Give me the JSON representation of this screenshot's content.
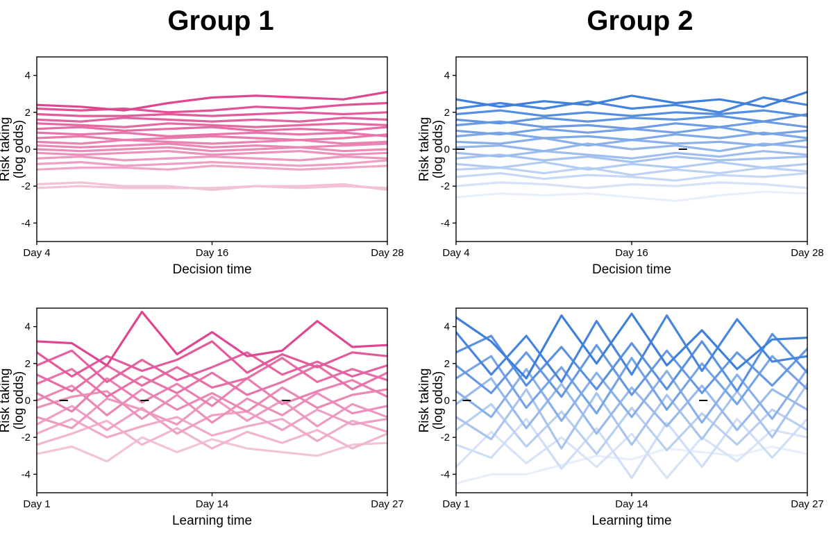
{
  "figure": {
    "group_titles": [
      "Group 1",
      "Group 2"
    ]
  },
  "chart_data": [
    {
      "id": "g1-decision",
      "type": "line",
      "group": "Group 1",
      "xlabel": "Decision time",
      "ylabel": [
        "Risk taking",
        "(log odds)"
      ],
      "x": [
        4,
        7,
        10,
        13,
        16,
        19,
        22,
        25,
        28
      ],
      "xticks": [
        {
          "value": 4,
          "label": "Day 4"
        },
        {
          "value": 16,
          "label": "Day 16"
        },
        {
          "value": 28,
          "label": "Day 28"
        }
      ],
      "ylim": [
        -5,
        5
      ],
      "yticks": [
        {
          "value": 4,
          "label": "4"
        },
        {
          "value": 2,
          "label": "2"
        },
        {
          "value": 0,
          "label": "0"
        },
        {
          "value": -2,
          "label": "-2"
        },
        {
          "value": -4,
          "label": "-4"
        }
      ],
      "color_high": "#e0458f",
      "color_low": "#f3c3d8",
      "zero_marks": [],
      "series": [
        {
          "name": "s1",
          "values": [
            2.4,
            2.3,
            2.1,
            2.5,
            2.8,
            2.9,
            2.8,
            2.7,
            3.1
          ]
        },
        {
          "name": "s2",
          "values": [
            2.2,
            2.1,
            2.2,
            2.0,
            2.1,
            2.3,
            2.2,
            2.4,
            2.5
          ]
        },
        {
          "name": "s3",
          "values": [
            1.9,
            1.8,
            1.8,
            1.9,
            1.8,
            1.9,
            2.0,
            1.9,
            2.0
          ]
        },
        {
          "name": "s4",
          "values": [
            1.6,
            1.5,
            1.7,
            1.6,
            1.5,
            1.6,
            1.5,
            1.7,
            1.6
          ]
        },
        {
          "name": "s5",
          "values": [
            1.4,
            1.3,
            1.2,
            1.4,
            1.3,
            1.2,
            1.3,
            1.4,
            1.3
          ]
        },
        {
          "name": "s6",
          "values": [
            1.1,
            1.2,
            1.0,
            1.1,
            1.2,
            1.0,
            1.1,
            1.0,
            1.2
          ]
        },
        {
          "name": "s7",
          "values": [
            0.9,
            0.8,
            0.9,
            0.7,
            0.8,
            0.9,
            0.8,
            0.9,
            0.7
          ]
        },
        {
          "name": "s8",
          "values": [
            0.6,
            0.7,
            0.5,
            0.6,
            0.7,
            0.6,
            0.5,
            0.6,
            0.8
          ]
        },
        {
          "name": "s9",
          "values": [
            0.4,
            0.3,
            0.5,
            0.4,
            0.3,
            0.4,
            0.5,
            0.3,
            0.4
          ]
        },
        {
          "name": "s10",
          "values": [
            0.2,
            0.1,
            0.2,
            0.3,
            0.1,
            0.2,
            0.1,
            0.2,
            0.3
          ]
        },
        {
          "name": "s11",
          "values": [
            0.0,
            -0.1,
            0.0,
            0.1,
            -0.1,
            0.0,
            0.1,
            -0.1,
            0.0
          ]
        },
        {
          "name": "s12",
          "values": [
            -0.2,
            -0.3,
            -0.2,
            -0.1,
            -0.3,
            -0.2,
            -0.1,
            -0.3,
            -0.2
          ]
        },
        {
          "name": "s13",
          "values": [
            -0.5,
            -0.4,
            -0.6,
            -0.5,
            -0.4,
            -0.5,
            -0.6,
            -0.4,
            -0.5
          ]
        },
        {
          "name": "s14",
          "values": [
            -0.8,
            -0.7,
            -0.9,
            -0.8,
            -0.7,
            -0.8,
            -0.9,
            -0.8,
            -0.6
          ]
        },
        {
          "name": "s15",
          "values": [
            -1.1,
            -1.0,
            -1.0,
            -1.1,
            -0.9,
            -1.0,
            -1.1,
            -1.0,
            -0.9
          ]
        },
        {
          "name": "s16",
          "values": [
            -1.9,
            -1.8,
            -2.0,
            -2.0,
            -2.2,
            -2.0,
            -2.0,
            -1.9,
            -2.2
          ]
        },
        {
          "name": "s17",
          "values": [
            -2.1,
            -2.0,
            -2.1,
            -2.1,
            -2.1,
            -2.0,
            -2.1,
            -2.0,
            -2.1
          ]
        }
      ]
    },
    {
      "id": "g2-decision",
      "type": "line",
      "group": "Group 2",
      "xlabel": "Decision time",
      "ylabel": [
        "Risk taking",
        "(log odds)"
      ],
      "x": [
        4,
        7,
        10,
        13,
        16,
        19,
        22,
        25,
        28
      ],
      "xticks": [
        {
          "value": 4,
          "label": "Day 4"
        },
        {
          "value": 16,
          "label": "Day 16"
        },
        {
          "value": 28,
          "label": "Day 28"
        }
      ],
      "ylim": [
        -5,
        5
      ],
      "yticks": [
        {
          "value": 4,
          "label": "4"
        },
        {
          "value": 2,
          "label": "2"
        },
        {
          "value": 0,
          "label": "0"
        },
        {
          "value": -2,
          "label": "-2"
        },
        {
          "value": -4,
          "label": "-4"
        }
      ],
      "color_high": "#3f7fdc",
      "color_low": "#e8eefb",
      "zero_marks": [
        4.3,
        19.5
      ],
      "series": [
        {
          "name": "s1",
          "values": [
            2.7,
            2.3,
            2.6,
            2.4,
            2.9,
            2.5,
            2.7,
            2.3,
            3.1
          ]
        },
        {
          "name": "s2",
          "values": [
            2.2,
            2.5,
            2.2,
            2.6,
            2.2,
            2.4,
            2.0,
            2.8,
            2.4
          ]
        },
        {
          "name": "s3",
          "values": [
            1.9,
            2.1,
            1.8,
            2.0,
            1.8,
            2.0,
            1.9,
            2.1,
            1.8
          ]
        },
        {
          "name": "s4",
          "values": [
            1.6,
            1.4,
            1.7,
            1.5,
            1.7,
            1.6,
            1.8,
            1.5,
            1.9
          ]
        },
        {
          "name": "s5",
          "values": [
            1.3,
            1.5,
            1.2,
            1.3,
            1.1,
            1.4,
            1.2,
            1.5,
            1.2
          ]
        },
        {
          "name": "s6",
          "values": [
            1.0,
            0.8,
            1.1,
            0.9,
            1.1,
            0.9,
            1.2,
            0.8,
            1.0
          ]
        },
        {
          "name": "s7",
          "values": [
            0.7,
            0.9,
            0.6,
            0.7,
            0.5,
            0.8,
            0.6,
            0.9,
            0.6
          ]
        },
        {
          "name": "s8",
          "values": [
            0.4,
            0.3,
            0.6,
            0.2,
            0.5,
            0.3,
            0.4,
            0.2,
            0.5
          ]
        },
        {
          "name": "s9",
          "values": [
            0.1,
            0.2,
            -0.1,
            0.3,
            0.0,
            0.2,
            -0.1,
            0.3,
            0.1
          ]
        },
        {
          "name": "s10",
          "values": [
            -0.2,
            -0.4,
            -0.1,
            -0.3,
            -0.5,
            -0.2,
            -0.4,
            -0.1,
            -0.3
          ]
        },
        {
          "name": "s11",
          "values": [
            -0.5,
            -0.3,
            -0.6,
            -0.4,
            -0.7,
            -0.4,
            -0.6,
            -0.5,
            -0.4
          ]
        },
        {
          "name": "s12",
          "values": [
            -0.8,
            -1.0,
            -0.7,
            -1.1,
            -0.8,
            -1.0,
            -0.7,
            -1.0,
            -0.8
          ]
        },
        {
          "name": "s13",
          "values": [
            -1.1,
            -1.0,
            -1.3,
            -1.0,
            -1.4,
            -1.1,
            -1.3,
            -1.0,
            -1.2
          ]
        },
        {
          "name": "s14",
          "values": [
            -1.5,
            -1.3,
            -1.6,
            -1.4,
            -1.5,
            -1.7,
            -1.4,
            -1.5,
            -1.3
          ]
        },
        {
          "name": "s15",
          "values": [
            -2.0,
            -1.8,
            -1.9,
            -2.1,
            -1.9,
            -2.0,
            -1.8,
            -1.9,
            -2.1
          ]
        },
        {
          "name": "s16",
          "values": [
            -2.6,
            -2.4,
            -2.5,
            -2.4,
            -2.6,
            -2.8,
            -2.5,
            -2.3,
            -2.4
          ]
        }
      ]
    },
    {
      "id": "g1-learning",
      "type": "line",
      "group": "Group 1",
      "xlabel": "Learning time",
      "ylabel": [
        "Risk taking",
        "(log odds)"
      ],
      "x": [
        1,
        3.6,
        6.2,
        8.8,
        11.4,
        14,
        16.6,
        19.2,
        21.8,
        24.4,
        27
      ],
      "xticks": [
        {
          "value": 1,
          "label": "Day 1"
        },
        {
          "value": 14,
          "label": "Day 14"
        },
        {
          "value": 27,
          "label": "Day 27"
        }
      ],
      "ylim": [
        -5,
        5
      ],
      "yticks": [
        {
          "value": 4,
          "label": "4"
        },
        {
          "value": 2,
          "label": "2"
        },
        {
          "value": 0,
          "label": "0"
        },
        {
          "value": -2,
          "label": "-2"
        },
        {
          "value": -4,
          "label": "-4"
        }
      ],
      "color_high": "#e0458f",
      "color_low": "#f3c3d8",
      "zero_marks": [
        3.0,
        9.0,
        19.5
      ],
      "series": [
        {
          "name": "s1",
          "values": [
            3.2,
            3.1,
            1.9,
            4.8,
            2.5,
            3.7,
            2.4,
            2.7,
            4.3,
            2.9,
            3.0
          ]
        },
        {
          "name": "s2",
          "values": [
            2.6,
            1.3,
            2.4,
            1.6,
            2.2,
            3.2,
            1.5,
            2.5,
            1.8,
            2.6,
            2.4
          ]
        },
        {
          "name": "s3",
          "values": [
            1.9,
            2.7,
            1.0,
            2.2,
            1.1,
            1.8,
            2.6,
            1.4,
            2.1,
            1.3,
            1.9
          ]
        },
        {
          "name": "s4",
          "values": [
            1.4,
            0.5,
            1.9,
            0.8,
            1.8,
            0.7,
            1.2,
            2.3,
            1.0,
            1.7,
            1.1
          ]
        },
        {
          "name": "s5",
          "values": [
            0.9,
            1.7,
            0.2,
            1.3,
            0.4,
            1.5,
            0.3,
            1.0,
            1.9,
            0.6,
            1.5
          ]
        },
        {
          "name": "s6",
          "values": [
            0.4,
            -0.6,
            1.2,
            -0.1,
            0.9,
            -0.3,
            1.2,
            -0.2,
            0.5,
            1.1,
            0.2
          ]
        },
        {
          "name": "s7",
          "values": [
            0.0,
            0.8,
            -0.8,
            0.6,
            -0.5,
            0.4,
            -0.6,
            0.7,
            -0.4,
            0.3,
            0.6
          ]
        },
        {
          "name": "s8",
          "values": [
            -0.4,
            0.2,
            0.5,
            -1.0,
            0.3,
            -1.2,
            0.1,
            -0.8,
            0.4,
            -0.7,
            -0.3
          ]
        },
        {
          "name": "s9",
          "values": [
            -0.9,
            -1.5,
            0.1,
            -0.5,
            -1.3,
            0.2,
            -1.1,
            0.0,
            -1.4,
            -0.2,
            -0.9
          ]
        },
        {
          "name": "s10",
          "values": [
            -1.3,
            -0.3,
            -1.6,
            -0.4,
            -1.8,
            -0.8,
            -0.6,
            -1.6,
            -0.5,
            -1.3,
            -1.0
          ]
        },
        {
          "name": "s11",
          "values": [
            -1.8,
            -1.0,
            -2.0,
            -1.4,
            -0.9,
            -1.9,
            -1.4,
            -1.0,
            -2.2,
            -1.1,
            -1.7
          ]
        },
        {
          "name": "s12",
          "values": [
            -2.4,
            -1.8,
            -1.1,
            -2.4,
            -1.5,
            -2.6,
            -1.7,
            -2.3,
            -1.6,
            -2.6,
            -1.8
          ]
        },
        {
          "name": "s13",
          "values": [
            -2.9,
            -2.5,
            -3.3,
            -2.0,
            -2.8,
            -2.1,
            -2.6,
            -2.8,
            -3.0,
            -2.4,
            -2.3
          ]
        }
      ]
    },
    {
      "id": "g2-learning",
      "type": "line",
      "group": "Group 2",
      "xlabel": "Learning time",
      "ylabel": [
        "Risk taking",
        "(log odds)"
      ],
      "x": [
        1,
        3.6,
        6.2,
        8.8,
        11.4,
        14,
        16.6,
        19.2,
        21.8,
        24.4,
        27
      ],
      "xticks": [
        {
          "value": 1,
          "label": "Day 1"
        },
        {
          "value": 14,
          "label": "Day 14"
        },
        {
          "value": 27,
          "label": "Day 27"
        }
      ],
      "ylim": [
        -5,
        5
      ],
      "yticks": [
        {
          "value": 4,
          "label": "4"
        },
        {
          "value": 2,
          "label": "2"
        },
        {
          "value": 0,
          "label": "0"
        },
        {
          "value": -2,
          "label": "-2"
        },
        {
          "value": -4,
          "label": "-4"
        }
      ],
      "color_high": "#3f7fdc",
      "color_low": "#e8eefb",
      "zero_marks": [
        1.8,
        19.3
      ],
      "series": [
        {
          "name": "s1",
          "values": [
            4.5,
            3.2,
            1.2,
            4.6,
            2.0,
            4.7,
            1.9,
            3.8,
            1.7,
            3.3,
            3.4
          ]
        },
        {
          "name": "s2",
          "values": [
            3.7,
            1.4,
            3.5,
            1.0,
            4.3,
            1.4,
            4.6,
            1.6,
            4.4,
            2.1,
            2.4
          ]
        },
        {
          "name": "s3",
          "values": [
            2.6,
            3.5,
            0.8,
            2.9,
            0.6,
            3.1,
            0.6,
            3.2,
            0.5,
            3.6,
            1.5
          ]
        },
        {
          "name": "s4",
          "values": [
            1.9,
            0.4,
            2.6,
            0.2,
            3.0,
            0.3,
            2.7,
            0.4,
            2.6,
            0.8,
            2.8
          ]
        },
        {
          "name": "s5",
          "values": [
            1.2,
            2.4,
            -0.4,
            1.8,
            -0.7,
            2.3,
            -0.5,
            2.0,
            -0.2,
            2.4,
            0.6
          ]
        },
        {
          "name": "s6",
          "values": [
            0.5,
            -0.9,
            1.7,
            -1.1,
            1.5,
            -0.9,
            1.6,
            -1.2,
            1.4,
            -1.0,
            1.7
          ]
        },
        {
          "name": "s7",
          "values": [
            -0.2,
            1.2,
            -1.5,
            0.9,
            -1.8,
            0.7,
            -1.4,
            0.8,
            -1.6,
            0.6,
            -0.5
          ]
        },
        {
          "name": "s8",
          "values": [
            -0.9,
            -2.1,
            0.6,
            -2.6,
            0.4,
            -2.4,
            0.3,
            -2.1,
            0.5,
            -2.0,
            0.9
          ]
        },
        {
          "name": "s9",
          "values": [
            -1.6,
            -0.2,
            -2.5,
            -0.6,
            -2.9,
            -0.4,
            -2.7,
            -0.7,
            -2.4,
            -0.5,
            -1.6
          ]
        },
        {
          "name": "s10",
          "values": [
            -2.4,
            -3.1,
            -1.0,
            -3.7,
            -1.5,
            -4.2,
            -1.2,
            -3.6,
            -1.0,
            -3.1,
            -1.0
          ]
        },
        {
          "name": "s11",
          "values": [
            -3.6,
            -1.7,
            -3.4,
            -2.0,
            -3.6,
            -1.8,
            -4.2,
            -2.0,
            -3.3,
            -1.6,
            -2.0
          ]
        },
        {
          "name": "s12",
          "values": [
            -4.5,
            -4.0,
            -4.0,
            -3.5,
            -3.0,
            -3.2,
            -2.6,
            -2.8,
            -3.0,
            -2.5,
            -2.9
          ]
        }
      ]
    }
  ]
}
